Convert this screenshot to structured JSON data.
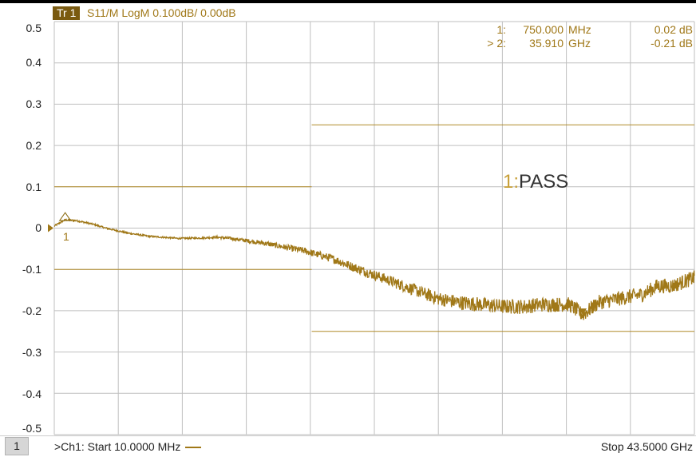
{
  "header": {
    "trace_badge": "Tr 1",
    "trace_setting": "S11/M LogM 0.100dB/  0.00dB"
  },
  "y_axis": {
    "ticks": [
      "0.5",
      "0.4",
      "0.3",
      "0.2",
      "0.1",
      "0",
      "-0.1",
      "-0.2",
      "-0.3",
      "-0.4",
      "-0.5"
    ]
  },
  "markers": [
    {
      "id": "1:",
      "freq": "750.000",
      "unit": "MHz",
      "value": "0.02 dB"
    },
    {
      "id": "> 2:",
      "freq": "35.910",
      "unit": "GHz",
      "value": "-0.21 dB"
    }
  ],
  "marker_flag_label": "1",
  "limit_test": {
    "num": "1:",
    "status": "PASS"
  },
  "footer": {
    "channel_number": "1",
    "start_label": ">Ch1:  Start  10.0000 MHz",
    "stop_label": "Stop  43.5000 GHz"
  },
  "colors": {
    "trace": "#a07818",
    "limit": "#b08a28",
    "grid": "#bfbfbf"
  },
  "chart_data": {
    "type": "line",
    "x_start_GHz": 0.01,
    "x_stop_GHz": 43.5,
    "ylim": [
      -0.5,
      0.5
    ],
    "y_unit": "dB",
    "grid": true,
    "series": [
      {
        "x": [
          0.01,
          0.75,
          1.5,
          2.6,
          3.5,
          5,
          6.5,
          8.5,
          10,
          11,
          12,
          13,
          14.5,
          15.5,
          17,
          19,
          20,
          21.5,
          23,
          24.5,
          26,
          27.5,
          29,
          30.5,
          32,
          33,
          34,
          35,
          35.91,
          37,
          38.5,
          40,
          41,
          42,
          43.5
        ],
        "values": [
          0.005,
          0.02,
          0.018,
          0.01,
          0.0,
          -0.012,
          -0.02,
          -0.025,
          -0.024,
          -0.022,
          -0.025,
          -0.03,
          -0.038,
          -0.045,
          -0.055,
          -0.075,
          -0.09,
          -0.11,
          -0.13,
          -0.15,
          -0.17,
          -0.18,
          -0.185,
          -0.19,
          -0.19,
          -0.185,
          -0.185,
          -0.185,
          -0.21,
          -0.18,
          -0.17,
          -0.16,
          -0.14,
          -0.14,
          -0.12
        ]
      }
    ],
    "limit_lines": [
      {
        "x": [
          0.01,
          17.5
        ],
        "values": [
          0.1,
          0.1
        ]
      },
      {
        "x": [
          0.01,
          17.5
        ],
        "values": [
          -0.1,
          -0.1
        ]
      },
      {
        "x": [
          17.5,
          43.5
        ],
        "values": [
          0.25,
          0.25
        ]
      },
      {
        "x": [
          17.5,
          43.5
        ],
        "values": [
          -0.25,
          -0.25
        ]
      }
    ]
  }
}
